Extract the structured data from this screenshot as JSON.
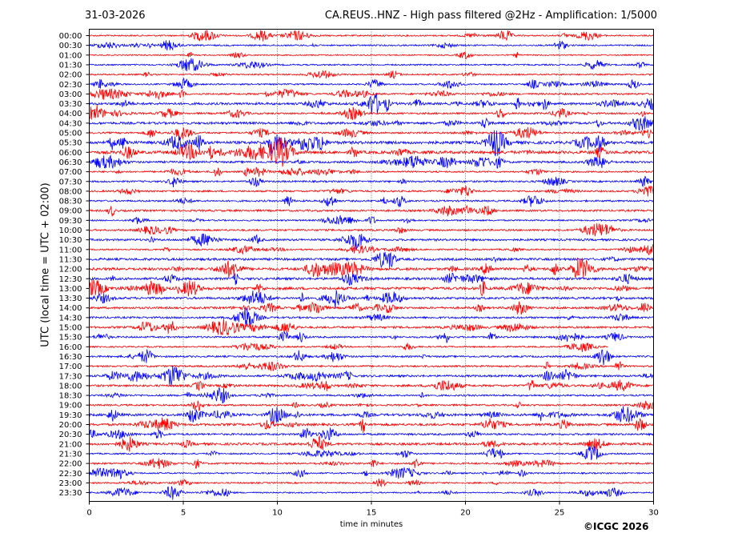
{
  "header": {
    "date": "31-03-2026",
    "title": "CA.REUS..HNZ - High pass filtered @2Hz - Amplification: 1/5000"
  },
  "footer": {
    "copyright": "©ICGC 2026"
  },
  "chart_data": {
    "type": "line",
    "title": "CA.REUS..HNZ - High pass filtered @2Hz - Amplification: 1/5000",
    "xlabel": "time in minutes",
    "ylabel": "UTC (local time = UTC + 02:00)",
    "xlim": [
      0,
      30
    ],
    "xticks": [
      0,
      5,
      10,
      15,
      20,
      25,
      30
    ],
    "grid": "vertical dotted at 5-minute ticks",
    "trace_colors": [
      "#ff0000",
      "#0000ff"
    ],
    "rows": [
      "00:00",
      "00:30",
      "01:00",
      "01:30",
      "02:00",
      "02:30",
      "03:00",
      "03:30",
      "04:00",
      "04:30",
      "05:00",
      "05:30",
      "06:00",
      "06:30",
      "07:00",
      "07:30",
      "08:00",
      "08:30",
      "09:00",
      "09:30",
      "10:00",
      "10:30",
      "11:00",
      "11:30",
      "12:00",
      "12:30",
      "13:00",
      "13:30",
      "14:00",
      "14:30",
      "15:00",
      "15:30",
      "16:00",
      "16:30",
      "17:00",
      "17:30",
      "18:00",
      "18:30",
      "19:00",
      "19:30",
      "20:00",
      "20:30",
      "21:00",
      "21:30",
      "22:00",
      "22:30",
      "23:00",
      "23:30"
    ],
    "row_activity": [
      1,
      1,
      0.8,
      1,
      1,
      1,
      1.2,
      1.6,
      1.2,
      1.6,
      1.2,
      2,
      2,
      1.4,
      1.1,
      1.2,
      1.2,
      1.2,
      1.3,
      1,
      1.2,
      1.4,
      1,
      1.6,
      1.8,
      1.6,
      1.8,
      1.5,
      1.4,
      1.3,
      1.4,
      1.2,
      1,
      1.2,
      1.2,
      1.4,
      1.4,
      1.2,
      1.2,
      1.6,
      1.6,
      1.3,
      1.6,
      1,
      1.2,
      1,
      1,
      0.9
    ],
    "notes": "Seismogram helicorder: each row is a 30-minute trace, alternating red and blue; the 16:00 row is blank after ~27.5 min (data ends)."
  }
}
